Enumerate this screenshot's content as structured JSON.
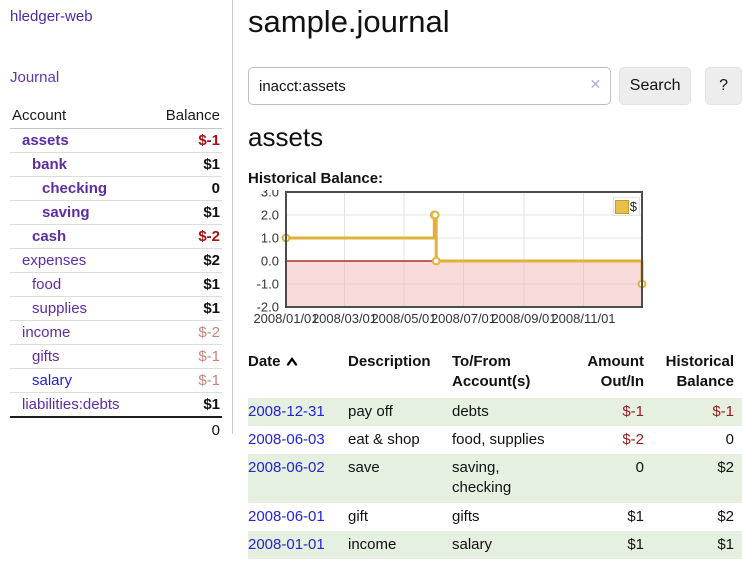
{
  "app": {
    "title": "hledger-web",
    "nav_journal": "Journal"
  },
  "sidebar": {
    "header": {
      "account": "Account",
      "balance": "Balance"
    },
    "accounts": [
      {
        "name": "assets",
        "balance": "$-1",
        "depth": 1,
        "bold": true,
        "balance_style": "neg-strong"
      },
      {
        "name": "bank",
        "balance": "$1",
        "depth": 2,
        "bold": true,
        "balance_style": "normal"
      },
      {
        "name": "checking",
        "balance": "0",
        "depth": 3,
        "bold": true,
        "balance_style": "normal"
      },
      {
        "name": "saving",
        "balance": "$1",
        "depth": 3,
        "bold": true,
        "balance_style": "normal"
      },
      {
        "name": "cash",
        "balance": "$-2",
        "depth": 2,
        "bold": true,
        "balance_style": "neg-strong"
      },
      {
        "name": "expenses",
        "balance": "$2",
        "depth": 1,
        "bold": false,
        "balance_style": "normal"
      },
      {
        "name": "food",
        "balance": "$1",
        "depth": 2,
        "bold": false,
        "balance_style": "normal"
      },
      {
        "name": "supplies",
        "balance": "$1",
        "depth": 2,
        "bold": false,
        "balance_style": "normal"
      },
      {
        "name": "income",
        "balance": "$-2",
        "depth": 1,
        "bold": false,
        "balance_style": "neg-muted"
      },
      {
        "name": "gifts",
        "balance": "$-1",
        "depth": 2,
        "bold": false,
        "balance_style": "neg-muted"
      },
      {
        "name": "salary",
        "balance": "$-1",
        "depth": 2,
        "bold": false,
        "balance_style": "neg-muted",
        "variant": "blue"
      },
      {
        "name": "liabilities:debts",
        "balance": "$1",
        "depth": 1,
        "bold": false,
        "balance_style": "normal"
      }
    ],
    "total": "0"
  },
  "main": {
    "title": "sample.journal",
    "search": {
      "value": "inacct:assets",
      "clear_icon": "✕",
      "button": "Search",
      "help": "?"
    },
    "account_heading": "assets",
    "chart_label": "Historical Balance:",
    "register": {
      "columns": [
        {
          "label": "Date",
          "align": "left",
          "sortable": true
        },
        {
          "label": "Description",
          "align": "left"
        },
        {
          "label": "To/From Account(s)",
          "align": "left"
        },
        {
          "label": "Amount Out/In",
          "align": "right"
        },
        {
          "label": "Historical Balance",
          "align": "right"
        }
      ],
      "rows": [
        {
          "date": "2008-12-31",
          "description": "pay off",
          "accounts": "debts",
          "amount": "$-1",
          "balance": "$-1"
        },
        {
          "date": "2008-06-03",
          "description": "eat & shop",
          "accounts": "food, supplies",
          "amount": "$-2",
          "balance": "0"
        },
        {
          "date": "2008-06-02",
          "description": "save",
          "accounts": "saving, checking",
          "amount": "0",
          "balance": "$2"
        },
        {
          "date": "2008-06-01",
          "description": "gift",
          "accounts": "gifts",
          "amount": "$1",
          "balance": "$2"
        },
        {
          "date": "2008-01-01",
          "description": "income",
          "accounts": "salary",
          "amount": "$1",
          "balance": "$1"
        }
      ]
    }
  },
  "chart_data": {
    "type": "line",
    "title": "Historical Balance:",
    "legend": "$",
    "step": true,
    "series": [
      {
        "name": "$",
        "color": "#e0b23a",
        "points": [
          [
            "2008-01-01",
            1
          ],
          [
            "2008-06-01",
            2
          ],
          [
            "2008-06-02",
            2
          ],
          [
            "2008-06-03",
            0
          ],
          [
            "2008-12-31",
            -1
          ]
        ]
      }
    ],
    "xlim": [
      "2008-01-01",
      "2008-12-31"
    ],
    "ylim": [
      -2,
      3
    ],
    "yticks": [
      3.0,
      2.0,
      1.0,
      0.0,
      -1.0,
      -2.0
    ],
    "xticks": [
      "2008/01/01",
      "2008/03/01",
      "2008/05/01",
      "2008/07/01",
      "2008/09/01",
      "2008/11/01"
    ],
    "zero_line_color": "#8c1010",
    "negative_region_color": "#f4a9a9",
    "grid": true,
    "legend_position": "top-right"
  }
}
